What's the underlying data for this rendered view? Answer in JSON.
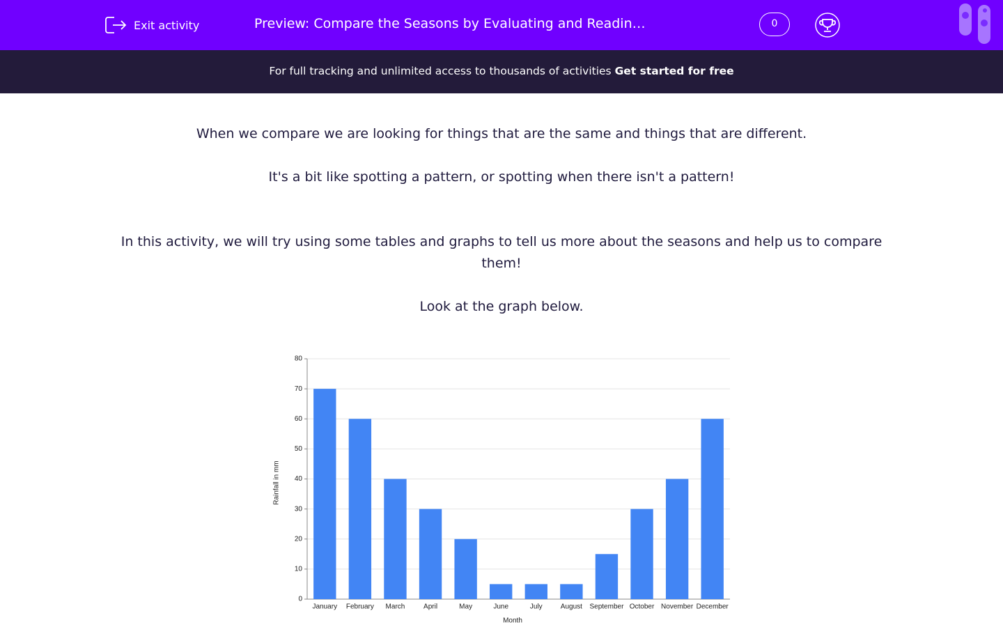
{
  "header": {
    "exit": "Exit activity",
    "title": "Preview: Compare the Seasons by Evaluating and Readin…",
    "score": 0
  },
  "banner": {
    "text": "For full tracking and unlimited access to thousands of activities",
    "link": "Get started for free"
  },
  "paragraphs": [
    "When we compare we are looking for things that are the same and things that are different.",
    "It's a bit like spotting a pattern, or spotting when there isn't a pattern!",
    "In this activity, we will try using some tables and graphs to tell us more about the seasons and help us to compare them!",
    "Look at the graph below."
  ],
  "chart_data": {
    "type": "bar",
    "x_label": "Month",
    "y_label": "Rainfall in mm",
    "categories": [
      "January",
      "February",
      "March",
      "April",
      "May",
      "June",
      "July",
      "August",
      "September",
      "October",
      "November",
      "December"
    ],
    "values": [
      70,
      60,
      40,
      30,
      20,
      5,
      5,
      5,
      15,
      30,
      40,
      60
    ],
    "color": "#4285f4",
    "ylim": [
      0,
      80
    ],
    "yticks": [
      0,
      10,
      20,
      30,
      40,
      50,
      60,
      70,
      80
    ],
    "grid": true
  }
}
